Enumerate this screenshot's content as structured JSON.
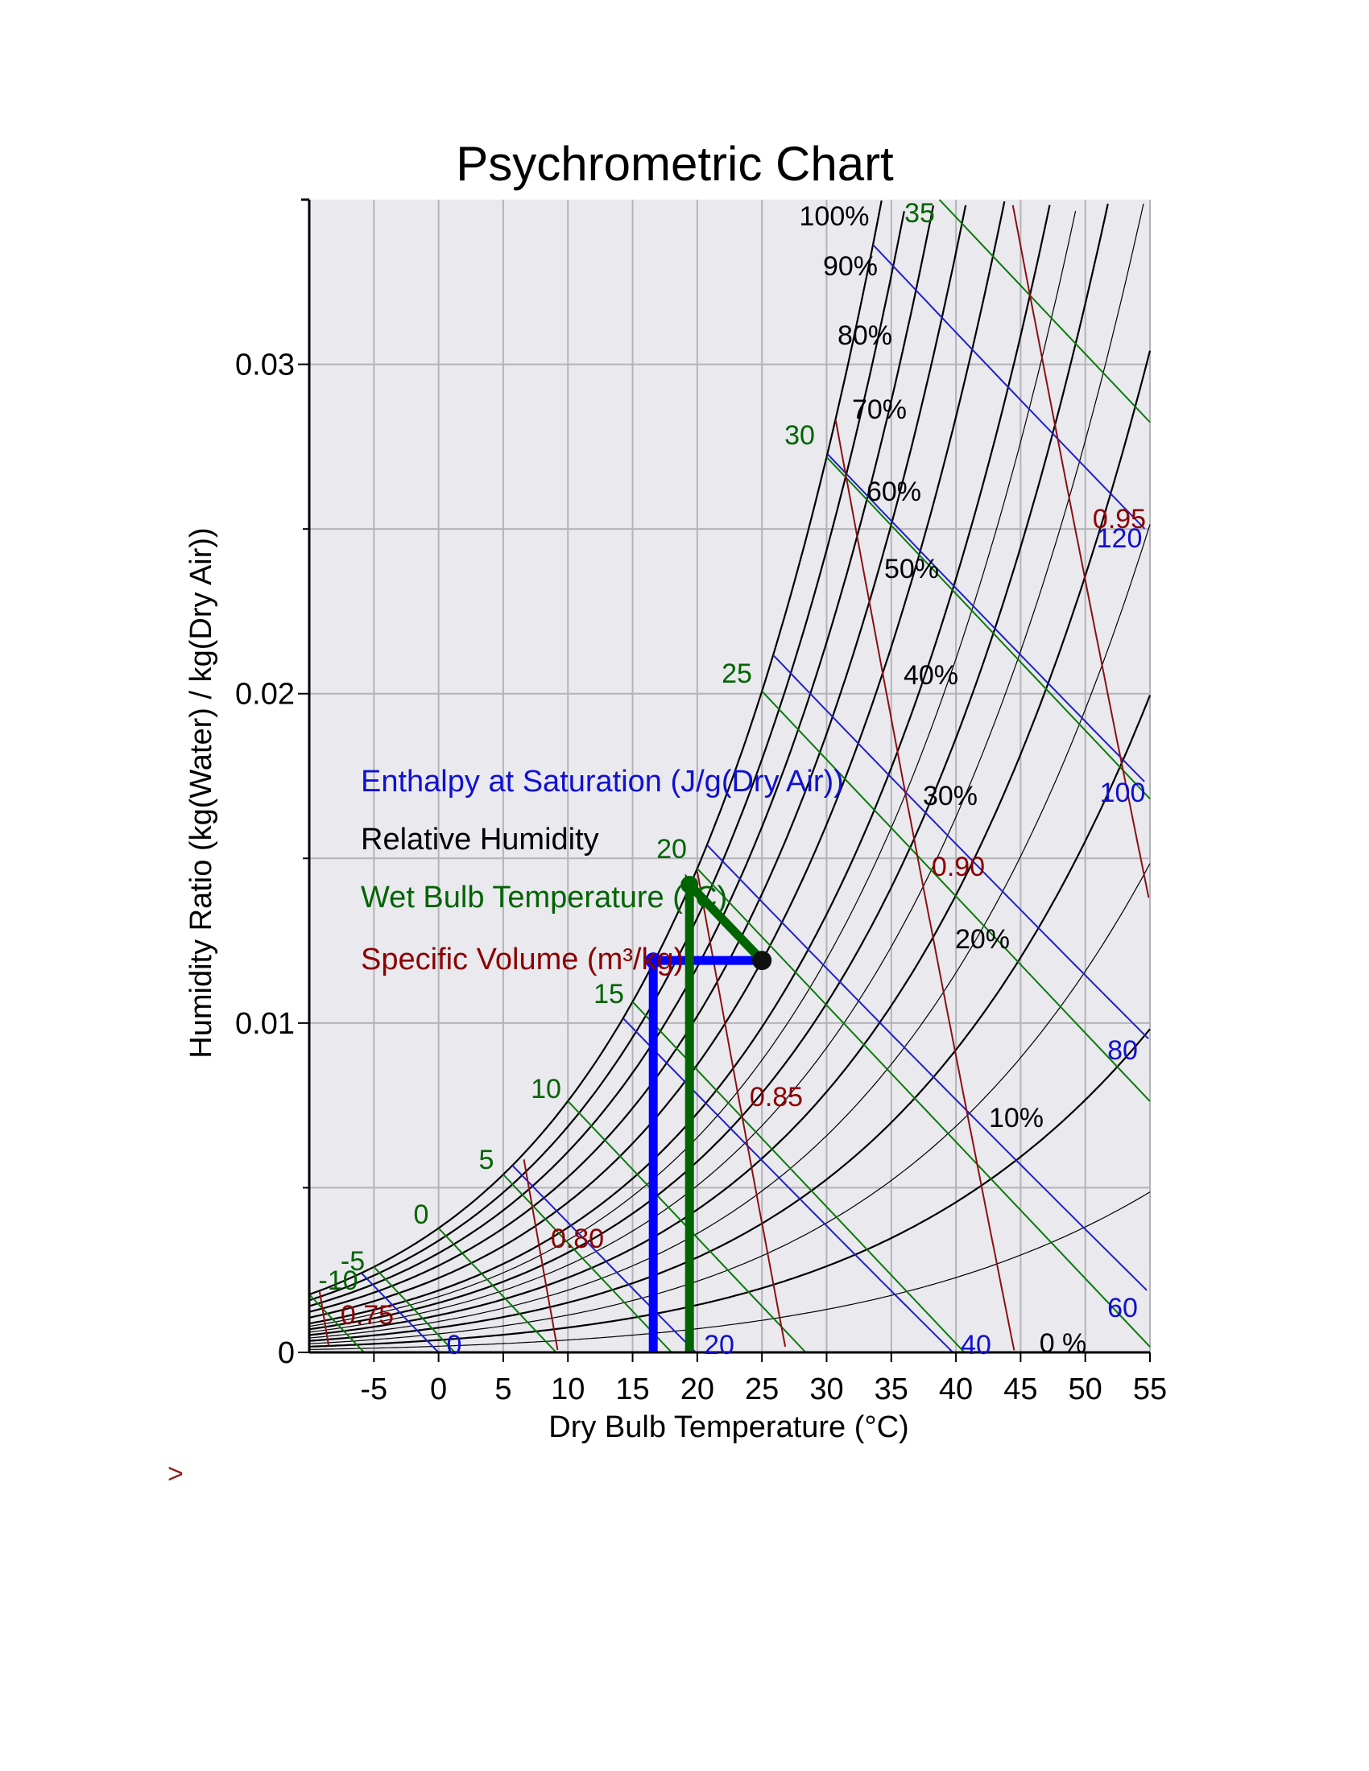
{
  "chart_data": {
    "type": "line",
    "title": "Psychrometric Chart",
    "xlabel": "Dry Bulb Temperature (°C)",
    "ylabel": "Humidity Ratio (kg(Water) / kg(Dry Air))",
    "xlim": [
      -10,
      55
    ],
    "ylim": [
      0,
      0.035
    ],
    "x_ticks": [
      -5,
      0,
      5,
      10,
      15,
      20,
      25,
      30,
      35,
      40,
      45,
      50,
      55
    ],
    "x_tick_labels": [
      "-5",
      "0",
      "5",
      "10",
      "15",
      "20",
      "25",
      "30",
      "35",
      "40",
      "45",
      "50",
      "55"
    ],
    "y_ticks": [
      0,
      0.01,
      0.02,
      0.03
    ],
    "y_tick_labels": [
      "0",
      "0.01",
      "0.02",
      "0.03"
    ],
    "grid": true,
    "background": "#e9e9ee",
    "legend": [
      {
        "label": "Enthalpy at Saturation (J/g(Dry Air))",
        "color": "#1010d0"
      },
      {
        "label": "Relative Humidity",
        "color": "#000000"
      },
      {
        "label": "Wet Bulb Temperature (°C)",
        "color": "#006400"
      },
      {
        "label": "Specific Volume (m³/kg)",
        "color": "#8b0000"
      }
    ],
    "relative_humidity_lines": [
      10,
      20,
      30,
      40,
      50,
      60,
      70,
      80,
      90,
      100
    ],
    "relative_humidity_labels": [
      "100%",
      "90%",
      "80%",
      "70%",
      "60%",
      "50%",
      "40%",
      "30%",
      "20%",
      "10%",
      "0 %"
    ],
    "wet_bulb_lines": [
      -10,
      -5,
      0,
      5,
      10,
      15,
      20,
      25,
      30,
      35
    ],
    "wet_bulb_labels": [
      "-10",
      "-5",
      "0",
      "5",
      "10",
      "15",
      "20",
      "25",
      "30",
      "35"
    ],
    "enthalpy_lines": [
      0,
      20,
      40,
      60,
      80,
      100,
      120
    ],
    "enthalpy_labels": [
      "0",
      "20",
      "40",
      "60",
      "80",
      "100",
      "120"
    ],
    "specific_volume_lines": [
      0.75,
      0.8,
      0.85,
      0.9,
      0.95
    ],
    "specific_volume_labels": [
      "0.75",
      "0.80",
      "0.85",
      "0.90",
      "0.95"
    ],
    "state_point": {
      "dry_bulb": 25,
      "humidity_ratio": 0.0119
    },
    "dew_point_path": {
      "x": [
        25,
        16.6,
        16.6
      ],
      "y": [
        0.0119,
        0.0119,
        0
      ],
      "color": "#0000ff"
    },
    "wet_bulb_path": {
      "x": [
        25,
        19.4,
        19.4
      ],
      "y": [
        0.0119,
        0.0142,
        0
      ],
      "color": "#006400"
    }
  },
  "prompt_symbol": ">"
}
